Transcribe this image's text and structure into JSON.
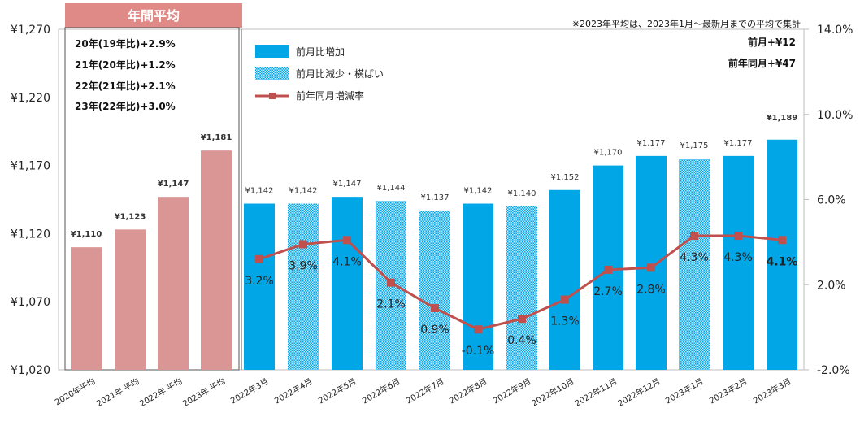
{
  "chart_data": {
    "type": "bar+line",
    "categories": [
      "2020年平均",
      "2021年 平均",
      "2022年 平均",
      "2023年 平均",
      "2022年3月",
      "2022年4月",
      "2022年5月",
      "2022年6月",
      "2022年7月",
      "2022年8月",
      "2022年9月",
      "2022年10月",
      "2022年11月",
      "2022年12月",
      "2023年1月",
      "2023年2月",
      "2023年3月"
    ],
    "bar_values": [
      1110,
      1123,
      1147,
      1181,
      1142,
      1142,
      1147,
      1144,
      1137,
      1142,
      1140,
      1152,
      1170,
      1177,
      1175,
      1177,
      1189
    ],
    "bar_labels": [
      "¥1,110",
      "¥1,123",
      "¥1,147",
      "¥1,181",
      "¥1,142",
      "¥1,142",
      "¥1,147",
      "¥1,144",
      "¥1,137",
      "¥1,142",
      "¥1,140",
      "¥1,152",
      "¥1,170",
      "¥1,177",
      "¥1,175",
      "¥1,177",
      "¥1,189"
    ],
    "bar_kinds": [
      "annual",
      "annual",
      "annual",
      "annual",
      "increase",
      "decrease",
      "increase",
      "decrease",
      "decrease",
      "increase",
      "decrease",
      "increase",
      "increase",
      "increase",
      "decrease",
      "increase",
      "increase"
    ],
    "line_series": {
      "name": "前年同月増減率",
      "start_index": 4,
      "values": [
        3.2,
        3.9,
        4.1,
        2.1,
        0.9,
        -0.1,
        0.4,
        1.3,
        2.7,
        2.8,
        4.3,
        4.3,
        4.1
      ],
      "labels": [
        "3.2%",
        "3.9%",
        "4.1%",
        "2.1%",
        "0.9%",
        "-0.1%",
        "0.4%",
        "1.3%",
        "2.7%",
        "2.8%",
        "4.3%",
        "4.3%",
        "4.1%"
      ]
    },
    "y_left": {
      "min": 1020,
      "max": 1270,
      "ticks": [
        1020,
        1070,
        1120,
        1170,
        1220,
        1270
      ],
      "tick_labels": [
        "¥1,020",
        "¥1,070",
        "¥1,120",
        "¥1,170",
        "¥1,220",
        "¥1,270"
      ]
    },
    "y_right": {
      "min": -2.0,
      "max": 14.0,
      "ticks": [
        -2,
        2,
        6,
        10,
        14
      ],
      "tick_labels": [
        "-2.0%",
        "2.0%",
        "6.0%",
        "10.0%",
        "14.0%"
      ]
    },
    "legend": [
      {
        "label": "前月比増加",
        "kind": "increase"
      },
      {
        "label": "前月比減少・横ばい",
        "kind": "decrease"
      },
      {
        "label": "前年同月増減率",
        "kind": "line"
      }
    ],
    "annual_box": {
      "title": "年間平均",
      "lines": [
        "20年(19年比)+2.9%",
        "21年(20年比)+1.2%",
        "22年(21年比)+2.1%",
        "23年(22年比)+3.0%"
      ]
    },
    "footnote": "※2023年平均は、2023年1月～最新月までの平均で集計",
    "summary": [
      "前月+¥12",
      "前年同月+¥47"
    ]
  },
  "colors": {
    "annual": "#d99694",
    "annual_header": "#e08a88",
    "increase": "#00a6e6",
    "decrease": "#00a6e6",
    "line": "#c0504d",
    "negative_label": "#e03030"
  }
}
